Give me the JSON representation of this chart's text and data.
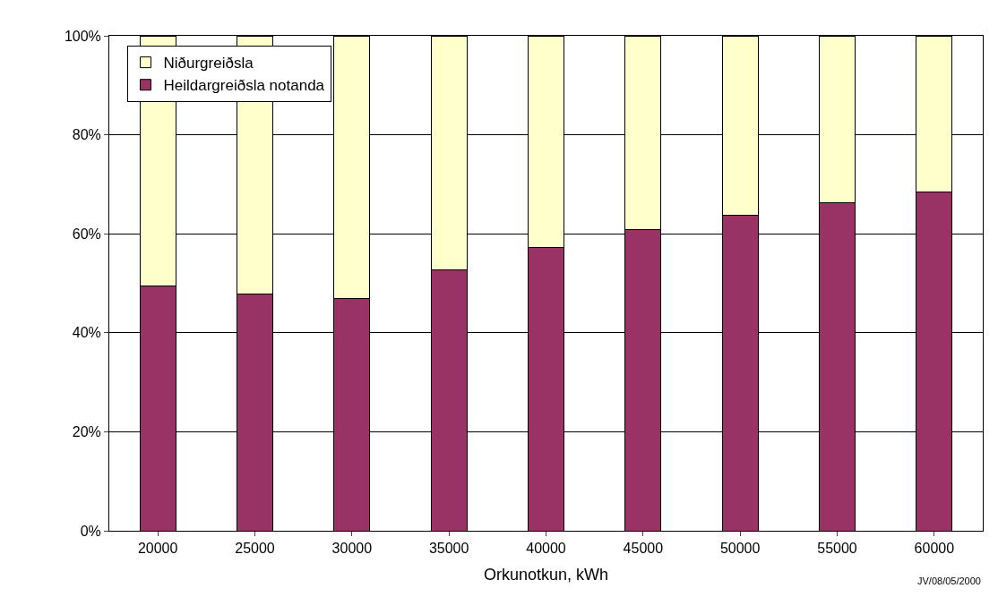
{
  "chart_data": {
    "type": "bar",
    "stacked": true,
    "xlabel": "Orkunotkun, kWh",
    "categories": [
      "20000",
      "25000",
      "30000",
      "35000",
      "40000",
      "45000",
      "50000",
      "55000",
      "60000"
    ],
    "series": [
      {
        "name": "Heildargreiðsla notanda",
        "color": "#993366",
        "values": [
          49.4,
          47.9,
          47.0,
          52.8,
          57.3,
          60.8,
          63.7,
          66.2,
          68.4
        ]
      },
      {
        "name": "Niðurgreiðsla",
        "color": "#ffffcc",
        "values": [
          50.6,
          52.1,
          53.0,
          47.2,
          42.7,
          39.2,
          36.3,
          33.8,
          31.6
        ]
      }
    ],
    "ylim": [
      0,
      100
    ],
    "yticks": [
      {
        "value": 0,
        "label": "0%"
      },
      {
        "value": 20,
        "label": "20%"
      },
      {
        "value": 40,
        "label": "40%"
      },
      {
        "value": 60,
        "label": "60%"
      },
      {
        "value": 80,
        "label": "80%"
      },
      {
        "value": 100,
        "label": "100%"
      }
    ],
    "grid": "y",
    "legend": "top left",
    "annotations": [
      "JV/08/05/2000"
    ]
  }
}
